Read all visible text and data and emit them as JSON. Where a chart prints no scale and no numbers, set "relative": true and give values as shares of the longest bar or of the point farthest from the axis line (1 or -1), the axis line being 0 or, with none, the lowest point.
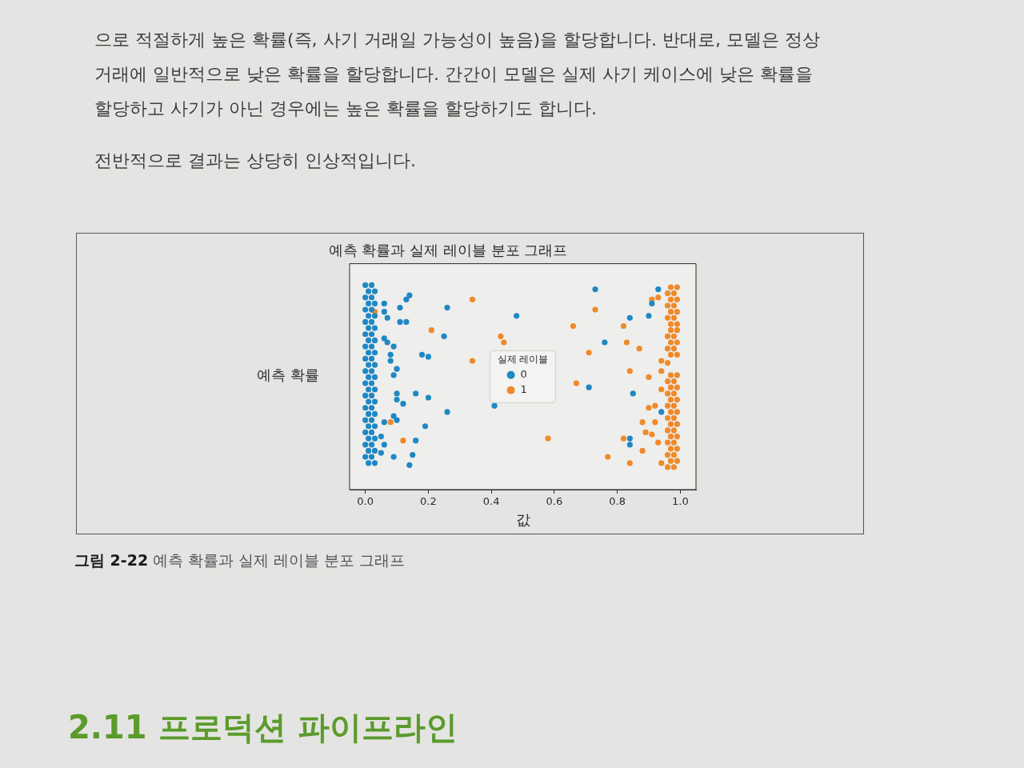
{
  "chart_data": {
    "type": "scatter",
    "relative": true,
    "title": "예측 확률과 실제 레이블 분포 그래프",
    "xlabel": "값",
    "ylabel": "예측 확률",
    "xlim": [
      -0.05,
      1.05
    ],
    "xticks": [
      {
        "value": 0,
        "label": "0.0"
      },
      0.2,
      0.4,
      0.6,
      0.8,
      {
        "value": 1,
        "label": "1.0"
      }
    ],
    "marker": "circle",
    "legend": "center",
    "legend_title": "실제 레이블",
    "series": [
      {
        "name": "0",
        "color": "#1f88c4",
        "x": [
          0.0,
          0.02,
          0.01,
          0.03,
          0.0,
          0.02,
          0.01,
          0.03,
          0.0,
          0.02,
          0.01,
          0.03,
          0.0,
          0.02,
          0.01,
          0.03,
          0.0,
          0.02,
          0.01,
          0.03,
          0.0,
          0.02,
          0.01,
          0.03,
          0.0,
          0.02,
          0.01,
          0.03,
          0.0,
          0.02,
          0.01,
          0.03,
          0.0,
          0.02,
          0.01,
          0.03,
          0.0,
          0.02,
          0.01,
          0.03,
          0.0,
          0.02,
          0.01,
          0.03,
          0.0,
          0.02,
          0.01,
          0.03,
          0.0,
          0.02,
          0.01,
          0.03,
          0.0,
          0.02,
          0.01,
          0.03,
          0.0,
          0.02,
          0.01,
          0.03,
          0.14,
          0.13,
          0.06,
          0.11,
          0.26,
          0.06,
          0.07,
          0.48,
          0.11,
          0.13,
          0.25,
          0.06,
          0.07,
          0.09,
          0.18,
          0.08,
          0.08,
          0.2,
          0.1,
          0.09,
          0.1,
          0.16,
          0.2,
          0.1,
          0.12,
          0.41,
          0.26,
          0.09,
          0.1,
          0.06,
          0.19,
          0.05,
          0.16,
          0.06,
          0.05,
          0.15,
          0.09,
          0.14,
          0.73,
          0.93,
          0.91,
          0.9,
          0.84,
          0.76,
          0.71,
          0.85,
          0.94,
          0.84,
          0.84
        ],
        "values": [
          1.0,
          1.0,
          0.97,
          0.97,
          0.94,
          0.94,
          0.91,
          0.91,
          0.88,
          0.88,
          0.85,
          0.85,
          0.82,
          0.82,
          0.79,
          0.79,
          0.76,
          0.76,
          0.73,
          0.73,
          0.7,
          0.7,
          0.67,
          0.67,
          0.64,
          0.64,
          0.61,
          0.61,
          0.58,
          0.58,
          0.55,
          0.55,
          0.52,
          0.52,
          0.49,
          0.49,
          0.46,
          0.46,
          0.43,
          0.43,
          0.4,
          0.4,
          0.37,
          0.37,
          0.34,
          0.34,
          0.31,
          0.31,
          0.28,
          0.28,
          0.25,
          0.25,
          0.22,
          0.22,
          0.19,
          0.19,
          0.16,
          0.16,
          0.13,
          0.13,
          0.95,
          0.93,
          0.91,
          0.89,
          0.89,
          0.87,
          0.84,
          0.85,
          0.82,
          0.82,
          0.75,
          0.74,
          0.72,
          0.7,
          0.66,
          0.66,
          0.63,
          0.65,
          0.59,
          0.56,
          0.47,
          0.47,
          0.45,
          0.44,
          0.42,
          0.41,
          0.38,
          0.36,
          0.34,
          0.33,
          0.31,
          0.26,
          0.24,
          0.22,
          0.18,
          0.17,
          0.16,
          0.12,
          0.98,
          0.98,
          0.91,
          0.85,
          0.84,
          0.72,
          0.5,
          0.47,
          0.38,
          0.25,
          0.22
        ]
      },
      {
        "name": "1",
        "color": "#ef8a2a",
        "x": [
          0.97,
          0.99,
          0.96,
          0.98,
          0.97,
          0.99,
          0.96,
          0.98,
          0.97,
          0.99,
          0.96,
          0.98,
          0.97,
          0.99,
          0.97,
          0.99,
          0.96,
          0.98,
          0.97,
          0.99,
          0.96,
          0.98,
          0.97,
          0.99,
          0.97,
          0.99,
          0.96,
          0.98,
          0.97,
          0.99,
          0.96,
          0.98,
          0.97,
          0.99,
          0.96,
          0.98,
          0.97,
          0.99,
          0.96,
          0.98,
          0.97,
          0.99,
          0.96,
          0.98,
          0.97,
          0.99,
          0.96,
          0.98,
          0.97,
          0.99,
          0.96,
          0.98,
          0.97,
          0.99,
          0.96,
          0.98,
          0.03,
          0.34,
          0.21,
          0.43,
          0.44,
          0.34,
          0.08,
          0.12,
          0.73,
          0.66,
          0.71,
          0.67,
          0.58,
          0.82,
          0.83,
          0.87,
          0.84,
          0.9,
          0.82,
          0.77,
          0.84,
          0.88,
          0.88,
          0.9,
          0.91,
          0.93,
          0.94,
          0.96,
          0.94,
          0.89,
          0.91,
          0.92,
          0.92,
          0.93,
          0.94,
          0.94
        ],
        "values": [
          0.99,
          0.99,
          0.96,
          0.96,
          0.93,
          0.93,
          0.9,
          0.9,
          0.87,
          0.87,
          0.84,
          0.84,
          0.81,
          0.81,
          0.78,
          0.78,
          0.75,
          0.75,
          0.72,
          0.72,
          0.69,
          0.69,
          0.66,
          0.66,
          0.56,
          0.56,
          0.53,
          0.53,
          0.5,
          0.5,
          0.47,
          0.47,
          0.44,
          0.44,
          0.41,
          0.41,
          0.38,
          0.38,
          0.35,
          0.35,
          0.32,
          0.32,
          0.29,
          0.29,
          0.26,
          0.26,
          0.23,
          0.23,
          0.2,
          0.2,
          0.17,
          0.17,
          0.14,
          0.14,
          0.11,
          0.11,
          0.87,
          0.93,
          0.78,
          0.75,
          0.72,
          0.63,
          0.33,
          0.24,
          0.88,
          0.8,
          0.67,
          0.52,
          0.25,
          0.8,
          0.72,
          0.69,
          0.58,
          0.55,
          0.25,
          0.16,
          0.13,
          0.19,
          0.33,
          0.4,
          0.93,
          0.94,
          0.63,
          0.62,
          0.58,
          0.28,
          0.27,
          0.41,
          0.33,
          0.23,
          0.13,
          0.49
        ]
      }
    ],
    "annotations": [
      "으로 적절하게 높은 확률(즉, 사기 거래일 가능성이 높음)을 할당합니다. 반대로, 모델은 정상\n거래에 일반적으로 낮은 확률을 할당합니다. 간간이 모델은 실제 사기 케이스에 낮은 확률을\n할당하고 사기가 아닌 경우에는 높은 확률을 할당하기도 합니다.",
      "전반적으로 결과는 상당히 인상적입니다.",
      "그림 2-22 예측 확률과 실제 레이블 분포 그래프",
      "2.11 프로덕션 파이프라인"
    ]
  }
}
